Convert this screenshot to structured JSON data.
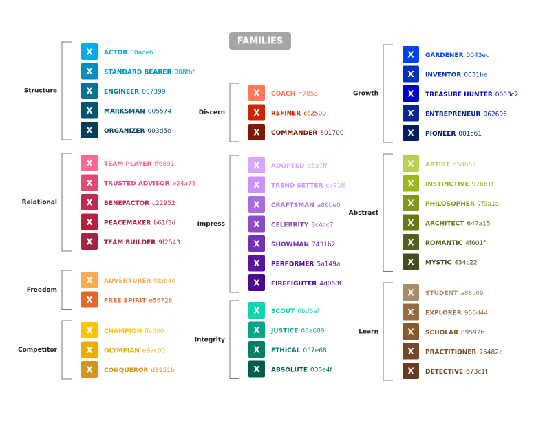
{
  "title": "FAMILIES",
  "swatch_label": "X",
  "columns": [
    {
      "groups": [
        {
          "label": "Structure",
          "items": [
            {
              "name": "ACTOR",
              "code": "00ace6"
            },
            {
              "name": "STANDARD BEARER",
              "code": "008fbf"
            },
            {
              "name": "ENGINEER",
              "code": "007399"
            },
            {
              "name": "MARKSMAN",
              "code": "005574"
            },
            {
              "name": "ORGANIZER",
              "code": "003d5e"
            }
          ]
        },
        {
          "label": "Relational",
          "items": [
            {
              "name": "TEAM PLAYER",
              "code": "ff6891"
            },
            {
              "name": "TRUSTED ADVISOR",
              "code": "e24a73"
            },
            {
              "name": "BENEFACTOR",
              "code": "c22952"
            },
            {
              "name": "PEACEMAKER",
              "code": "b61f3d"
            },
            {
              "name": "TEAM BUILDER",
              "code": "9f2543"
            }
          ]
        },
        {
          "label": "Freedom",
          "items": [
            {
              "name": "ADVENTURER",
              "code": "fdab4e"
            },
            {
              "name": "FREE SPIRIT",
              "code": "e56728"
            }
          ]
        },
        {
          "label": "Competitor",
          "items": [
            {
              "name": "CHAMPION",
              "code": "ffc600"
            },
            {
              "name": "OLYMPIAN",
              "code": "e9ac00"
            },
            {
              "name": "CONQUEROR",
              "code": "d3951b"
            }
          ]
        }
      ]
    },
    {
      "groups": [
        {
          "label": "Discern",
          "items": [
            {
              "name": "COACH",
              "code": "ff785a"
            },
            {
              "name": "REFINER",
              "code": "cc2500"
            },
            {
              "name": "COMMANDER",
              "code": "801700"
            }
          ]
        },
        {
          "label": "Impress",
          "items": [
            {
              "name": "ADOPTED",
              "code": "d5a7ff"
            },
            {
              "name": "TREND SETTER",
              "code": "ca91ff"
            },
            {
              "name": "CRAFTSMAN",
              "code": "a86be0"
            },
            {
              "name": "CELEBRITY",
              "code": "8c4cc7"
            },
            {
              "name": "SHOWMAN",
              "code": "7431b2"
            },
            {
              "name": "PERFORMER",
              "code": "5a149a"
            },
            {
              "name": "FIREFIGHTER",
              "code": "4d068f"
            }
          ]
        },
        {
          "label": "Integrity",
          "items": [
            {
              "name": "SCOUT",
              "code": "0bd6af"
            },
            {
              "name": "JUSTICE",
              "code": "08a689"
            },
            {
              "name": "ETHICAL",
              "code": "057e68"
            },
            {
              "name": "ABSOLUTE",
              "code": "035e4f"
            }
          ]
        }
      ]
    },
    {
      "groups": [
        {
          "label": "Growth",
          "items": [
            {
              "name": "GARDENER",
              "code": "0043ed"
            },
            {
              "name": "INVENTOR",
              "code": "0031be"
            },
            {
              "name": "TREASURE HUNTER",
              "code": "0003c2"
            },
            {
              "name": "ENTREPRENEUR",
              "code": "062696"
            },
            {
              "name": "PIONEER",
              "code": "001c61"
            }
          ]
        },
        {
          "label": "Abstract",
          "items": [
            {
              "name": "ARTIST",
              "code": "b5d052"
            },
            {
              "name": "INSTINCTIVE",
              "code": "97b81f"
            },
            {
              "name": "PHILOSOPHER",
              "code": "7f9a1a"
            },
            {
              "name": "ARCHITECT",
              "code": "647a15"
            },
            {
              "name": "ROMANTIC",
              "code": "4f601f"
            },
            {
              "name": "MYSTIC",
              "code": "434c22"
            }
          ]
        },
        {
          "label": "Learn",
          "items": [
            {
              "name": "STUDENT",
              "code": "a88c69"
            },
            {
              "name": "EXPLORER",
              "code": "956d44"
            },
            {
              "name": "SCHOLAR",
              "code": "89592b"
            },
            {
              "name": "PRACTITIONER",
              "code": "75482c"
            },
            {
              "name": "DETECTIVE",
              "code": "673c1f"
            }
          ]
        }
      ]
    }
  ]
}
